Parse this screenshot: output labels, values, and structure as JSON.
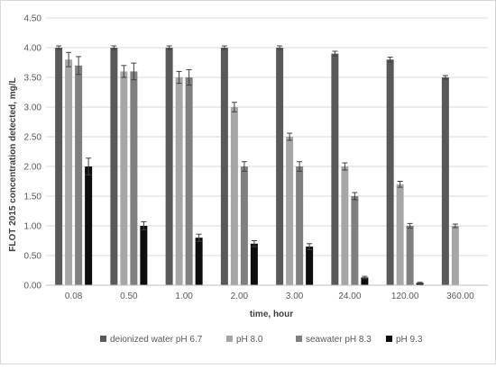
{
  "chart_data": {
    "type": "bar",
    "title": "",
    "xlabel": "time, hour",
    "ylabel": "FLOT 2015 concentration detected, mg/L",
    "ylim": [
      0,
      4.5
    ],
    "ytick_step": 0.5,
    "ytick_labels": [
      "0.00",
      "0.50",
      "1.00",
      "1.50",
      "2.00",
      "2.50",
      "3.00",
      "3.50",
      "4.00",
      "4.50"
    ],
    "grid": "horizontal",
    "legend_position": "bottom",
    "categories": [
      "0.08",
      "0.50",
      "1.00",
      "2.00",
      "3.00",
      "24.00",
      "120.00",
      "360.00"
    ],
    "series": [
      {
        "name": "deionized water pH 6.7",
        "color": "#595959",
        "values": [
          4.0,
          4.0,
          4.0,
          4.0,
          4.0,
          3.9,
          3.8,
          3.5
        ],
        "errors": [
          0.03,
          0.03,
          0.03,
          0.03,
          0.03,
          0.04,
          0.04,
          0.03
        ]
      },
      {
        "name": "pH 8.0",
        "color": "#a6a6a6",
        "values": [
          3.8,
          3.6,
          3.5,
          3.0,
          2.5,
          2.0,
          1.7,
          1.0
        ],
        "errors": [
          0.12,
          0.1,
          0.1,
          0.08,
          0.06,
          0.06,
          0.05,
          0.03
        ]
      },
      {
        "name": "seawater pH 8.3",
        "color": "#7f7f7f",
        "values": [
          3.7,
          3.6,
          3.5,
          2.0,
          2.0,
          1.5,
          1.0,
          null
        ],
        "errors": [
          0.15,
          0.14,
          0.13,
          0.08,
          0.08,
          0.06,
          0.04,
          null
        ]
      },
      {
        "name": "pH 9.3",
        "color": "#0d0d0d",
        "values": [
          2.0,
          1.0,
          0.8,
          0.7,
          0.65,
          0.13,
          0.04,
          null
        ],
        "errors": [
          0.14,
          0.07,
          0.06,
          0.05,
          0.05,
          0.02,
          0.01,
          null
        ]
      }
    ]
  }
}
